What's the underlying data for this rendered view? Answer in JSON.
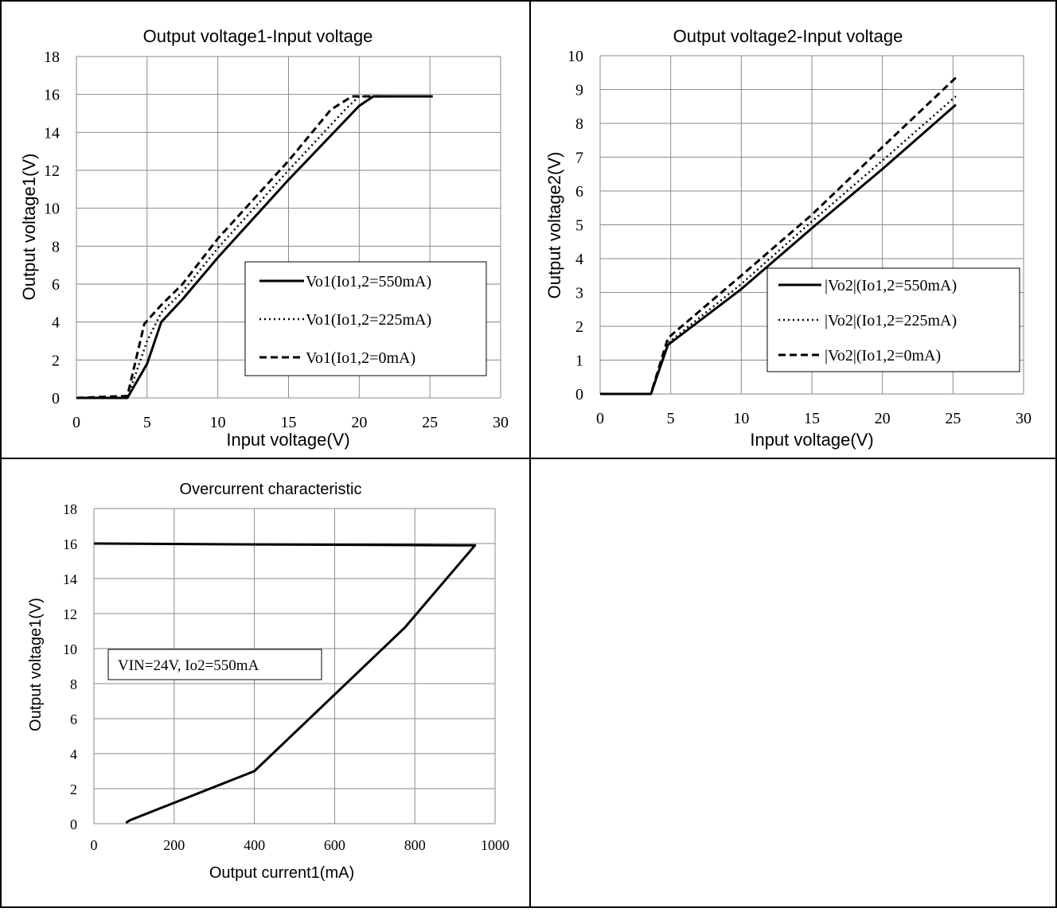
{
  "chart_data": [
    {
      "type": "line",
      "title": "Output voltage1-Input voltage",
      "xlabel": "Input voltage(V)",
      "ylabel": "Output voltage1(V)",
      "xlim": [
        0,
        30
      ],
      "ylim": [
        0,
        18
      ],
      "x_ticks": [
        0,
        5,
        10,
        15,
        20,
        25,
        30
      ],
      "y_ticks": [
        0,
        2,
        4,
        6,
        8,
        10,
        12,
        14,
        16,
        18
      ],
      "grid": true,
      "legend_position": "center-right",
      "series": [
        {
          "name": "Vo1(Io1,2=550mA)",
          "style": "solid",
          "x": [
            0,
            3.5,
            3.6,
            5,
            6,
            7.5,
            10,
            15,
            20,
            21,
            22,
            25.2
          ],
          "y": [
            0,
            0,
            0,
            1.8,
            4.0,
            5.2,
            7.4,
            11.5,
            15.4,
            15.9,
            15.9,
            15.9
          ]
        },
        {
          "name": "Vo1(Io1,2=225mA)",
          "style": "dotted",
          "x": [
            0,
            3.5,
            3.6,
            5,
            6,
            7.5,
            10,
            15,
            19,
            20,
            22
          ],
          "y": [
            0,
            0,
            0,
            3.0,
            4.5,
            5.6,
            7.9,
            12.0,
            15.2,
            15.9,
            15.9
          ]
        },
        {
          "name": "Vo1(Io1,2=0mA)",
          "style": "dashed",
          "x": [
            0,
            3.5,
            3.6,
            4.8,
            6,
            7.5,
            10,
            15,
            18,
            19.5,
            22
          ],
          "y": [
            0,
            0.1,
            0.1,
            3.9,
            4.9,
            6.0,
            8.4,
            12.5,
            15.2,
            15.9,
            15.9
          ]
        }
      ]
    },
    {
      "type": "line",
      "title": "Output voltage2-Input voltage",
      "xlabel": "Input voltage(V)",
      "ylabel": "Output voltage2(V)",
      "xlim": [
        0,
        30
      ],
      "ylim": [
        0,
        10
      ],
      "x_ticks": [
        0,
        5,
        10,
        15,
        20,
        25,
        30
      ],
      "y_ticks": [
        0,
        1,
        2,
        3,
        4,
        5,
        6,
        7,
        8,
        9,
        10
      ],
      "grid": true,
      "legend_position": "bottom-right",
      "series": [
        {
          "name": "|Vo2|(Io1,2=550mA)",
          "style": "solid",
          "x": [
            0,
            3.6,
            4.8,
            10,
            15,
            20,
            25.2
          ],
          "y": [
            0,
            0,
            1.45,
            3.1,
            4.9,
            6.65,
            8.55
          ]
        },
        {
          "name": "|Vo2|(Io1,2=225mA)",
          "style": "dotted",
          "x": [
            0,
            3.6,
            4.8,
            10,
            15,
            20,
            25.2
          ],
          "y": [
            0,
            0,
            1.5,
            3.25,
            5.1,
            6.9,
            8.8
          ]
        },
        {
          "name": "|Vo2|(Io1,2=0mA)",
          "style": "dashed",
          "x": [
            0,
            3.6,
            4.8,
            10,
            15,
            20,
            25.2
          ],
          "y": [
            0,
            0,
            1.65,
            3.5,
            5.3,
            7.3,
            9.35
          ]
        }
      ]
    },
    {
      "type": "line",
      "title": "Overcurrent characteristic",
      "xlabel": "Output current1(mA)",
      "ylabel": "Output voltage1(V)",
      "xlim": [
        0,
        1000
      ],
      "ylim": [
        0,
        18
      ],
      "x_ticks": [
        0,
        200,
        400,
        600,
        800,
        1000
      ],
      "y_ticks": [
        0,
        2,
        4,
        6,
        8,
        10,
        12,
        14,
        16,
        18
      ],
      "grid": true,
      "annotation": "VIN=24V, Io2=550mA",
      "series": [
        {
          "style": "solid",
          "x": [
            0,
            400,
            900,
            950,
            775,
            400,
            90,
            80
          ],
          "y": [
            16.0,
            15.95,
            15.9,
            15.9,
            11.2,
            3.0,
            0.2,
            0.05
          ]
        }
      ]
    }
  ]
}
